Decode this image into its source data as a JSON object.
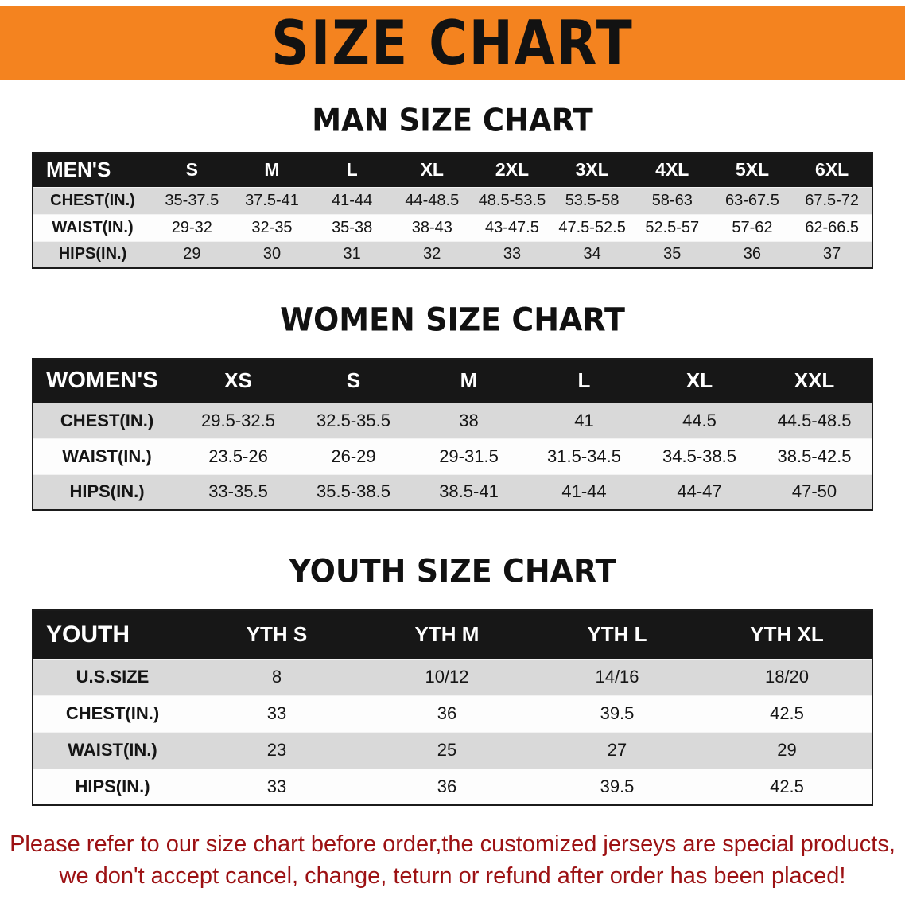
{
  "banner": {
    "title": "SIZE CHART"
  },
  "colors": {
    "banner_bg": "#f4831f",
    "header_bg": "#171717",
    "row_alt": "#d9d9d9",
    "footer_text": "#9c1113"
  },
  "sections": [
    {
      "heading": "MAN SIZE CHART",
      "table": {
        "header": [
          "MEN'S",
          "S",
          "M",
          "L",
          "XL",
          "2XL",
          "3XL",
          "4XL",
          "5XL",
          "6XL"
        ],
        "rows": [
          {
            "label": "CHEST(IN.)",
            "values": [
              "35-37.5",
              "37.5-41",
              "41-44",
              "44-48.5",
              "48.5-53.5",
              "53.5-58",
              "58-63",
              "63-67.5",
              "67.5-72"
            ]
          },
          {
            "label": "WAIST(IN.)",
            "values": [
              "29-32",
              "32-35",
              "35-38",
              "38-43",
              "43-47.5",
              "47.5-52.5",
              "52.5-57",
              "57-62",
              "62-66.5"
            ]
          },
          {
            "label": "HIPS(IN.)",
            "values": [
              "29",
              "30",
              "31",
              "32",
              "33",
              "34",
              "35",
              "36",
              "37"
            ]
          }
        ]
      }
    },
    {
      "heading": "WOMEN SIZE CHART",
      "table": {
        "header": [
          "WOMEN'S",
          "XS",
          "S",
          "M",
          "L",
          "XL",
          "XXL"
        ],
        "rows": [
          {
            "label": "CHEST(IN.)",
            "values": [
              "29.5-32.5",
              "32.5-35.5",
              "38",
              "41",
              "44.5",
              "44.5-48.5"
            ]
          },
          {
            "label": "WAIST(IN.)",
            "values": [
              "23.5-26",
              "26-29",
              "29-31.5",
              "31.5-34.5",
              "34.5-38.5",
              "38.5-42.5"
            ]
          },
          {
            "label": "HIPS(IN.)",
            "values": [
              "33-35.5",
              "35.5-38.5",
              "38.5-41",
              "41-44",
              "44-47",
              "47-50"
            ]
          }
        ]
      }
    },
    {
      "heading": "YOUTH SIZE CHART",
      "table": {
        "header": [
          "YOUTH",
          "YTH S",
          "YTH M",
          "YTH L",
          "YTH XL"
        ],
        "rows": [
          {
            "label": "U.S.SIZE",
            "values": [
              "8",
              "10/12",
              "14/16",
              "18/20"
            ]
          },
          {
            "label": "CHEST(IN.)",
            "values": [
              "33",
              "36",
              "39.5",
              "42.5"
            ]
          },
          {
            "label": "WAIST(IN.)",
            "values": [
              "23",
              "25",
              "27",
              "29"
            ]
          },
          {
            "label": "HIPS(IN.)",
            "values": [
              "33",
              "36",
              "39.5",
              "42.5"
            ]
          }
        ]
      }
    }
  ],
  "footer": {
    "line1": "Please refer to our size chart before order,the customized jerseys are special products,",
    "line2": "we don't accept cancel, change, teturn or refund after order has been placed!"
  }
}
